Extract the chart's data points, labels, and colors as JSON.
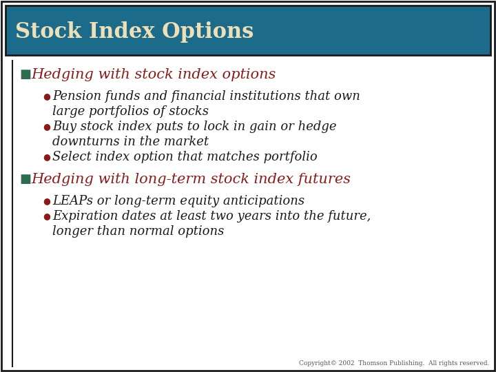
{
  "title": "Stock Index Options",
  "title_bg_color": "#1C6B8A",
  "title_text_color": "#EDE0B8",
  "title_border_color": "#1A1A1A",
  "bg_color": "#FFFFFF",
  "slide_border_color": "#1A1A1A",
  "h1_color": "#8B1A1A",
  "h1_bullet_color": "#2E6B4F",
  "bullet_marker_color": "#8B1A1A",
  "body_color": "#1A1A1A",
  "copyright_color": "#555555",
  "h1_items": [
    {
      "heading": "Hedging with stock index options",
      "bullets": [
        [
          "Pension funds and financial institutions that own",
          "large portfolios of stocks"
        ],
        [
          "Buy stock index puts to lock in gain or hedge",
          "downturns in the market"
        ],
        [
          "Select index option that matches portfolio"
        ]
      ]
    },
    {
      "heading": "Hedging with long-term stock index futures",
      "bullets": [
        [
          "LEAPs or long-term equity anticipations"
        ],
        [
          "Expiration dates at least two years into the future,",
          "longer than normal options"
        ]
      ]
    }
  ],
  "copyright": "Copyright© 2002  Thomson Publishing.  All rights reserved."
}
